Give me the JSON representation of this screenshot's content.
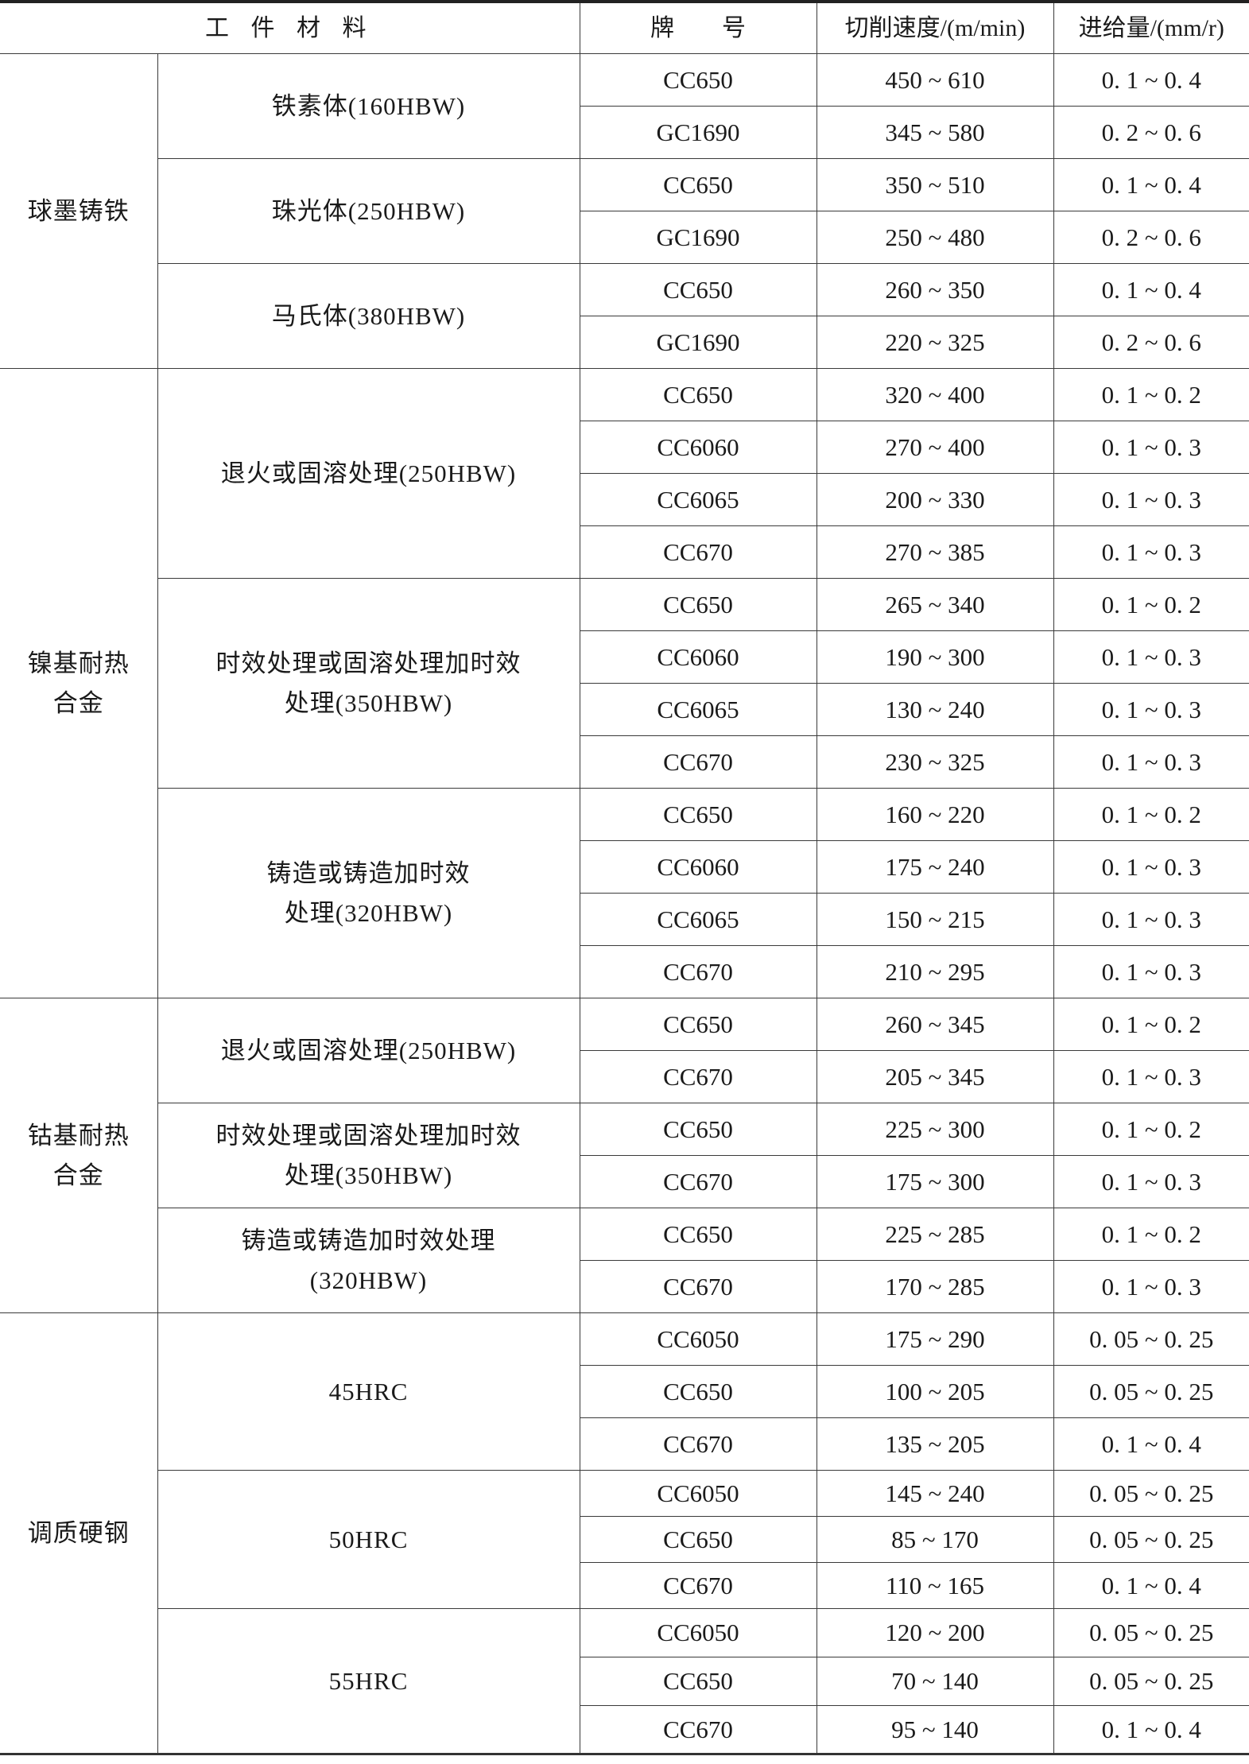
{
  "header": {
    "material": "工 件 材 料",
    "grade": "牌　　号",
    "speed": "切削速度/(m/min)",
    "feed": "进给量/(mm/r)"
  },
  "groups": [
    {
      "name": "球墨铸铁",
      "subgroups": [
        {
          "name": "铁素体(160HBW)",
          "rows": [
            [
              "CC650",
              "450 ~ 610",
              "0. 1 ~ 0. 4"
            ],
            [
              "GC1690",
              "345 ~ 580",
              "0. 2 ~ 0. 6"
            ]
          ]
        },
        {
          "name": "珠光体(250HBW)",
          "rows": [
            [
              "CC650",
              "350 ~ 510",
              "0. 1 ~ 0. 4"
            ],
            [
              "GC1690",
              "250 ~ 480",
              "0. 2 ~ 0. 6"
            ]
          ]
        },
        {
          "name": "马氏体(380HBW)",
          "rows": [
            [
              "CC650",
              "260 ~ 350",
              "0. 1 ~ 0. 4"
            ],
            [
              "GC1690",
              "220 ~ 325",
              "0. 2 ~ 0. 6"
            ]
          ]
        }
      ]
    },
    {
      "name": "镍基耐热\n合金",
      "subgroups": [
        {
          "name": "退火或固溶处理(250HBW)",
          "rows": [
            [
              "CC650",
              "320 ~ 400",
              "0. 1 ~ 0. 2"
            ],
            [
              "CC6060",
              "270 ~ 400",
              "0. 1 ~ 0. 3"
            ],
            [
              "CC6065",
              "200 ~ 330",
              "0. 1 ~ 0. 3"
            ],
            [
              "CC670",
              "270 ~ 385",
              "0. 1 ~ 0. 3"
            ]
          ]
        },
        {
          "name": "时效处理或固溶处理加时效\n处理(350HBW)",
          "rows": [
            [
              "CC650",
              "265 ~ 340",
              "0. 1 ~ 0. 2"
            ],
            [
              "CC6060",
              "190 ~ 300",
              "0. 1 ~ 0. 3"
            ],
            [
              "CC6065",
              "130 ~ 240",
              "0. 1 ~ 0. 3"
            ],
            [
              "CC670",
              "230 ~ 325",
              "0. 1 ~ 0. 3"
            ]
          ]
        },
        {
          "name": "铸造或铸造加时效\n处理(320HBW)",
          "rows": [
            [
              "CC650",
              "160 ~ 220",
              "0. 1 ~ 0. 2"
            ],
            [
              "CC6060",
              "175 ~ 240",
              "0. 1 ~ 0. 3"
            ],
            [
              "CC6065",
              "150 ~ 215",
              "0. 1 ~ 0. 3"
            ],
            [
              "CC670",
              "210 ~ 295",
              "0. 1 ~ 0. 3"
            ]
          ]
        }
      ]
    },
    {
      "name": "钴基耐热\n合金",
      "subgroups": [
        {
          "name": "退火或固溶处理(250HBW)",
          "rows": [
            [
              "CC650",
              "260 ~ 345",
              "0. 1 ~ 0. 2"
            ],
            [
              "CC670",
              "205 ~ 345",
              "0. 1 ~ 0. 3"
            ]
          ]
        },
        {
          "name": "时效处理或固溶处理加时效\n处理(350HBW)",
          "rows": [
            [
              "CC650",
              "225 ~ 300",
              "0. 1 ~ 0. 2"
            ],
            [
              "CC670",
              "175 ~ 300",
              "0. 1 ~ 0. 3"
            ]
          ]
        },
        {
          "name": "铸造或铸造加时效处理\n(320HBW)",
          "rows": [
            [
              "CC650",
              "225 ~ 285",
              "0. 1 ~ 0. 2"
            ],
            [
              "CC670",
              "170 ~ 285",
              "0. 1 ~ 0. 3"
            ]
          ]
        }
      ]
    },
    {
      "name": "调质硬钢",
      "subgroups": [
        {
          "name": "45HRC",
          "rows": [
            [
              "CC6050",
              "175 ~ 290",
              "0. 05 ~ 0. 25"
            ],
            [
              "CC650",
              "100 ~ 205",
              "0. 05 ~ 0. 25"
            ],
            [
              "CC670",
              "135 ~ 205",
              "0. 1 ~ 0. 4"
            ]
          ]
        },
        {
          "name": "50HRC",
          "rows": [
            [
              "CC6050",
              "145 ~ 240",
              "0. 05 ~ 0. 25"
            ],
            [
              "CC650",
              "85 ~ 170",
              "0. 05 ~ 0. 25"
            ],
            [
              "CC670",
              "110 ~ 165",
              "0. 1 ~ 0. 4"
            ]
          ]
        },
        {
          "name": "55HRC",
          "rows": [
            [
              "CC6050",
              "120 ~ 200",
              "0. 05 ~ 0. 25"
            ],
            [
              "CC650",
              "70 ~ 140",
              "0. 05 ~ 0. 25"
            ],
            [
              "CC670",
              "95 ~ 140",
              "0. 1 ~ 0. 4"
            ]
          ]
        }
      ]
    }
  ]
}
